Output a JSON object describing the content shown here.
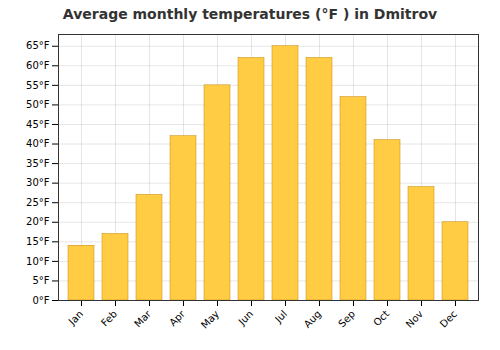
{
  "chart_data": {
    "type": "bar",
    "title": "Average monthly temperatures (°F ) in Dmitrov",
    "categories": [
      "Jan",
      "Feb",
      "Mar",
      "Apr",
      "May",
      "Jun",
      "Jul",
      "Aug",
      "Sep",
      "Oct",
      "Nov",
      "Dec"
    ],
    "values": [
      14,
      17,
      27,
      42,
      55,
      62,
      65,
      62,
      52,
      41,
      29,
      20
    ],
    "color": "#FFCC44",
    "ylim": [
      0,
      68
    ],
    "yticks": [
      {
        "value": 0,
        "label": "0°F"
      },
      {
        "value": 5,
        "label": "5°F"
      },
      {
        "value": 10,
        "label": "10°F"
      },
      {
        "value": 15,
        "label": "15°F"
      },
      {
        "value": 20,
        "label": "20°F"
      },
      {
        "value": 25,
        "label": "25°F"
      },
      {
        "value": 30,
        "label": "30°F"
      },
      {
        "value": 35,
        "label": "35°F"
      },
      {
        "value": 40,
        "label": "40°F"
      },
      {
        "value": 45,
        "label": "45°F"
      },
      {
        "value": 50,
        "label": "50°F"
      },
      {
        "value": 55,
        "label": "55°F"
      },
      {
        "value": 60,
        "label": "60°F"
      },
      {
        "value": 65,
        "label": "65°F"
      }
    ],
    "grid": true
  }
}
